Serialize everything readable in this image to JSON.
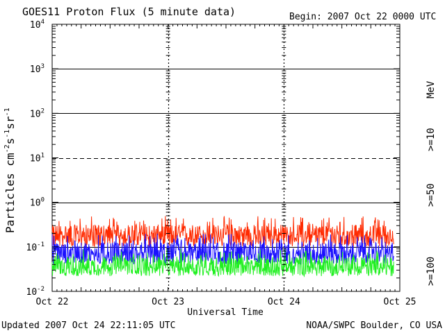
{
  "chart_data": {
    "type": "line",
    "title": "GOES11 Proton Flux (5 minute data)",
    "begin_label": "Begin: 2007 Oct 22 0000 UTC",
    "xlabel": "Universal Time",
    "ylabel": "Particles cm⁻²s⁻¹sr⁻¹",
    "ylabel_parts": {
      "main": "Particles cm",
      "e1": "-2",
      "s": "s",
      "e2": "-1",
      "sr": "sr",
      "e3": "-1"
    },
    "yscale": "log",
    "ylim": [
      0.01,
      10000
    ],
    "y_ticks": [
      {
        "base": "10",
        "exp": "4",
        "value": 10000
      },
      {
        "base": "10",
        "exp": "3",
        "value": 1000
      },
      {
        "base": "10",
        "exp": "2",
        "value": 100
      },
      {
        "base": "10",
        "exp": "1",
        "value": 10
      },
      {
        "base": "10",
        "exp": "0",
        "value": 1
      },
      {
        "base": "10",
        "exp": "-1",
        "value": 0.1
      },
      {
        "base": "10",
        "exp": "-2",
        "value": 0.01
      }
    ],
    "x_range_days": [
      0,
      3
    ],
    "x_ticks": [
      {
        "label": "Oct 22",
        "day": 0
      },
      {
        "label": "Oct 23",
        "day": 1
      },
      {
        "label": "Oct 24",
        "day": 2
      },
      {
        "label": "Oct 25",
        "day": 3
      }
    ],
    "threshold_lines": [
      {
        "value": 1000,
        "style": "solid"
      },
      {
        "value": 100,
        "style": "solid"
      },
      {
        "value": 10,
        "style": "dashed"
      },
      {
        "value": 1,
        "style": "solid"
      },
      {
        "value": 0.1,
        "style": "solid"
      }
    ],
    "units_label": "MeV",
    "series": [
      {
        "name": ">=10",
        "color": "#ff2a00",
        "data_end_day": 2.95,
        "typical_range": [
          0.1,
          0.5
        ],
        "typical_median": 0.18
      },
      {
        "name": ">=50",
        "color": "#1a10ff",
        "data_end_day": 2.95,
        "typical_range": [
          0.04,
          0.2
        ],
        "typical_median": 0.07
      },
      {
        "name": ">=100",
        "color": "#20f020",
        "data_end_day": 2.95,
        "typical_range": [
          0.022,
          0.09
        ],
        "typical_median": 0.035
      }
    ]
  },
  "footer": {
    "updated": "Updated 2007 Oct 24 22:11:05 UTC",
    "source": "NOAA/SWPC Boulder, CO USA"
  }
}
